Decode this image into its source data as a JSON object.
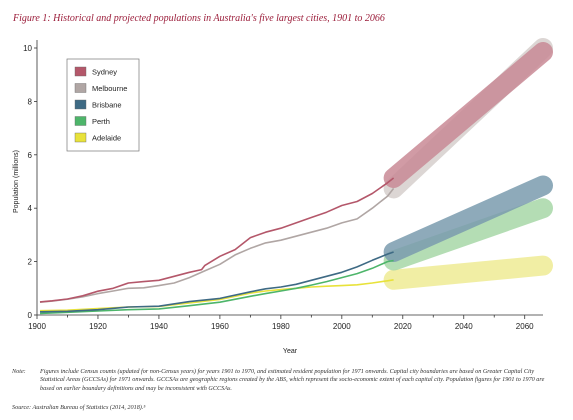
{
  "figure": {
    "title": "Figure 1: Historical and projected populations in Australia's five largest cities, 1901 to 2066",
    "note_label": "Note:",
    "note_text": "Figures include Census counts (updated for non-Census years) for years 1901 to 1970, and estimated resident population for 1971 onwards. Capital city boundaries are based on Greater Capital City Statistical Areas (GCCSAs) for 1971 onwards. GCCSAs are geographic regions created by the ABS, which represent the socio-economic extent of each capital city. Population figures for 1901 to 1970 are based on earlier boundary definitions and may be inconsistent with GCCSAs.",
    "source": "Source: Australian Bureau of Statistics (2014, 2018).⁵"
  },
  "chart_data": {
    "type": "line",
    "title": "Figure 1: Historical and projected populations in Australia's five largest cities, 1901 to 2066",
    "xlabel": "Year",
    "ylabel": "Population (millions)",
    "xlim": [
      1900,
      2066
    ],
    "ylim": [
      0,
      10
    ],
    "xticks": [
      1900,
      1920,
      1940,
      1960,
      1980,
      2000,
      2020,
      2040,
      2060
    ],
    "yticks": [
      0,
      2,
      4,
      6,
      8,
      10
    ],
    "grid": false,
    "legend_position": "top-left",
    "series": [
      {
        "name": "Sydney",
        "color": "#b4576a",
        "projection_color": "#c98a96",
        "x": [
          1901,
          1905,
          1910,
          1915,
          1920,
          1925,
          1930,
          1935,
          1940,
          1945,
          1950,
          1954,
          1955,
          1960,
          1965,
          1970,
          1975,
          1980,
          1985,
          1990,
          1995,
          2000,
          2005,
          2010,
          2015,
          2017
        ],
        "values": [
          0.49,
          0.53,
          0.6,
          0.72,
          0.89,
          1.0,
          1.2,
          1.25,
          1.3,
          1.45,
          1.6,
          1.7,
          1.85,
          2.2,
          2.45,
          2.9,
          3.1,
          3.25,
          3.45,
          3.65,
          3.85,
          4.1,
          4.25,
          4.55,
          4.95,
          5.13
        ],
        "projection": {
          "x": [
            2017,
            2066
          ],
          "values": [
            5.13,
            9.85
          ]
        }
      },
      {
        "name": "Melbourne",
        "color": "#b0a6a4",
        "projection_color": "#d6cfcd",
        "x": [
          1901,
          1905,
          1910,
          1915,
          1920,
          1925,
          1930,
          1935,
          1940,
          1945,
          1950,
          1955,
          1960,
          1965,
          1970,
          1975,
          1980,
          1985,
          1990,
          1995,
          2000,
          2005,
          2010,
          2015,
          2017
        ],
        "values": [
          0.48,
          0.52,
          0.59,
          0.68,
          0.8,
          0.9,
          1.0,
          1.02,
          1.1,
          1.2,
          1.4,
          1.65,
          1.9,
          2.25,
          2.5,
          2.7,
          2.8,
          2.95,
          3.1,
          3.25,
          3.45,
          3.6,
          4.0,
          4.45,
          4.74
        ],
        "projection": {
          "x": [
            2017,
            2066
          ],
          "values": [
            4.74,
            10.0
          ]
        }
      },
      {
        "name": "Brisbane",
        "color": "#3e6a84",
        "projection_color": "#7b9caf",
        "x": [
          1901,
          1910,
          1920,
          1930,
          1940,
          1950,
          1960,
          1970,
          1975,
          1980,
          1985,
          1990,
          1995,
          2000,
          2005,
          2010,
          2015,
          2017
        ],
        "values": [
          0.12,
          0.14,
          0.2,
          0.3,
          0.33,
          0.5,
          0.62,
          0.87,
          0.98,
          1.05,
          1.15,
          1.3,
          1.45,
          1.6,
          1.8,
          2.05,
          2.28,
          2.36
        ],
        "projection": {
          "x": [
            2017,
            2066
          ],
          "values": [
            2.36,
            4.85
          ]
        }
      },
      {
        "name": "Perth",
        "color": "#4db56a",
        "projection_color": "#a7d8a8",
        "x": [
          1901,
          1910,
          1920,
          1930,
          1940,
          1950,
          1960,
          1970,
          1975,
          1980,
          1985,
          1990,
          1995,
          2000,
          2005,
          2010,
          2015,
          2017
        ],
        "values": [
          0.06,
          0.1,
          0.15,
          0.2,
          0.23,
          0.35,
          0.48,
          0.7,
          0.8,
          0.9,
          1.0,
          1.12,
          1.25,
          1.4,
          1.55,
          1.75,
          2.0,
          2.04
        ],
        "projection": {
          "x": [
            2017,
            2066
          ],
          "values": [
            2.04,
            4.0
          ]
        }
      },
      {
        "name": "Adelaide",
        "color": "#e8e23a",
        "projection_color": "#efec95",
        "x": [
          1901,
          1910,
          1920,
          1930,
          1940,
          1950,
          1960,
          1970,
          1975,
          1980,
          1985,
          1990,
          1995,
          2000,
          2005,
          2010,
          2015,
          2017
        ],
        "values": [
          0.16,
          0.18,
          0.24,
          0.3,
          0.32,
          0.45,
          0.58,
          0.82,
          0.9,
          0.95,
          1.0,
          1.05,
          1.08,
          1.1,
          1.13,
          1.2,
          1.28,
          1.32
        ],
        "projection": {
          "x": [
            2017,
            2066
          ],
          "values": [
            1.32,
            1.85
          ]
        }
      }
    ]
  }
}
